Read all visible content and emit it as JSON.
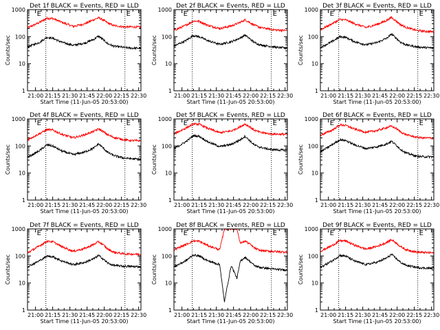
{
  "figure": {
    "y_axis_label": "Counts/sec",
    "x_axis_label": "Start Time (11-Jun-05 20:53:00)",
    "x_tick_labels": [
      "21:00",
      "21:15",
      "21:30",
      "21:45",
      "22:00",
      "22:15",
      "22:30"
    ],
    "y_tick_labels": [
      "1",
      "10",
      "100",
      "1000"
    ],
    "marker_label": "E",
    "colors": {
      "events": "#000000",
      "lld": "#ff0000",
      "background": "#ffffff",
      "axes": "#000000"
    }
  },
  "chart_data": [
    {
      "type": "line",
      "title": "Det 1f BLACK = Events, RED = LLD",
      "xlabel": "Start Time (11-Jun-05 20:53:00)",
      "ylabel": "Counts/sec",
      "x_range_minutes": [
        0,
        99
      ],
      "ylim": [
        1,
        1000
      ],
      "yscale": "log",
      "x_ticks_minutes": [
        7,
        22,
        37,
        52,
        67,
        82,
        97
      ],
      "vertical_markers_minutes": [
        16,
        85
      ],
      "corner_markers": [
        "E",
        "E"
      ],
      "series": [
        {
          "name": "LLD",
          "color": "red",
          "x": [
            0,
            10,
            17,
            22,
            30,
            40,
            50,
            58,
            62,
            66,
            70,
            75,
            84,
            90,
            99
          ],
          "y": [
            210,
            330,
            480,
            470,
            340,
            240,
            300,
            430,
            500,
            420,
            320,
            260,
            230,
            230,
            225
          ]
        },
        {
          "name": "Events",
          "color": "black",
          "x": [
            0,
            10,
            17,
            22,
            30,
            40,
            50,
            58,
            62,
            66,
            70,
            75,
            84,
            90,
            99
          ],
          "y": [
            42,
            60,
            95,
            88,
            62,
            48,
            58,
            80,
            105,
            78,
            55,
            45,
            40,
            38,
            37
          ]
        }
      ]
    },
    {
      "type": "line",
      "title": "Det 2f BLACK = Events, RED = LLD",
      "xlabel": "Start Time (11-Jun-05 20:53:00)",
      "ylabel": "Counts/sec",
      "x_range_minutes": [
        0,
        99
      ],
      "ylim": [
        1,
        1000
      ],
      "yscale": "log",
      "x_ticks_minutes": [
        7,
        22,
        37,
        52,
        67,
        82,
        97
      ],
      "vertical_markers_minutes": [
        16,
        85
      ],
      "corner_markers": [
        "E",
        "E"
      ],
      "series": [
        {
          "name": "LLD",
          "color": "red",
          "x": [
            0,
            10,
            17,
            22,
            30,
            40,
            50,
            58,
            62,
            66,
            70,
            75,
            84,
            90,
            99
          ],
          "y": [
            170,
            260,
            380,
            370,
            260,
            200,
            250,
            340,
            420,
            340,
            270,
            220,
            190,
            175,
            170
          ]
        },
        {
          "name": "Events",
          "color": "black",
          "x": [
            0,
            10,
            17,
            22,
            30,
            40,
            50,
            58,
            62,
            66,
            70,
            75,
            84,
            90,
            99
          ],
          "y": [
            45,
            70,
            110,
            100,
            70,
            52,
            65,
            90,
            115,
            85,
            62,
            50,
            44,
            40,
            38
          ]
        }
      ]
    },
    {
      "type": "line",
      "title": "Det 3f BLACK = Events, RED = LLD",
      "xlabel": "Start Time (11-Jun-05 20:53:00)",
      "ylabel": "Counts/sec",
      "x_range_minutes": [
        0,
        99
      ],
      "ylim": [
        1,
        1000
      ],
      "yscale": "log",
      "x_ticks_minutes": [
        7,
        22,
        37,
        52,
        67,
        82,
        97
      ],
      "vertical_markers_minutes": [
        16,
        85
      ],
      "corner_markers": [
        "E",
        "E"
      ],
      "series": [
        {
          "name": "LLD",
          "color": "red",
          "x": [
            0,
            10,
            17,
            22,
            30,
            40,
            50,
            58,
            62,
            66,
            70,
            75,
            84,
            90,
            99
          ],
          "y": [
            180,
            300,
            430,
            420,
            300,
            220,
            290,
            400,
            520,
            380,
            280,
            220,
            170,
            160,
            150
          ]
        },
        {
          "name": "Events",
          "color": "black",
          "x": [
            0,
            10,
            17,
            22,
            30,
            40,
            50,
            58,
            62,
            66,
            70,
            75,
            84,
            90,
            99
          ],
          "y": [
            40,
            65,
            100,
            95,
            65,
            50,
            62,
            88,
            125,
            90,
            62,
            50,
            42,
            40,
            38
          ]
        }
      ]
    },
    {
      "type": "line",
      "title": "Det 4f BLACK = Events, RED = LLD",
      "xlabel": "Start Time (11-Jun-05 20:53:00)",
      "ylabel": "Counts/sec",
      "x_range_minutes": [
        0,
        99
      ],
      "ylim": [
        1,
        1000
      ],
      "yscale": "log",
      "x_ticks_minutes": [
        7,
        22,
        37,
        52,
        67,
        82,
        97
      ],
      "vertical_markers_minutes": [
        16,
        85
      ],
      "corner_markers": [
        "E",
        "E"
      ],
      "series": [
        {
          "name": "LLD",
          "color": "red",
          "x": [
            0,
            10,
            17,
            22,
            30,
            40,
            50,
            58,
            62,
            66,
            70,
            75,
            84,
            90,
            99
          ],
          "y": [
            170,
            280,
            400,
            390,
            270,
            200,
            260,
            350,
            430,
            340,
            260,
            210,
            170,
            160,
            155
          ]
        },
        {
          "name": "Events",
          "color": "black",
          "x": [
            0,
            10,
            17,
            22,
            30,
            40,
            50,
            58,
            62,
            66,
            70,
            75,
            84,
            90,
            99
          ],
          "y": [
            38,
            65,
            110,
            100,
            65,
            48,
            60,
            85,
            120,
            85,
            58,
            45,
            36,
            34,
            32
          ]
        }
      ]
    },
    {
      "type": "line",
      "title": "Det 5f BLACK = Events, RED = LLD",
      "xlabel": "Start Time (11-Jun-05 20:53:00)",
      "ylabel": "Counts/sec",
      "x_range_minutes": [
        0,
        99
      ],
      "ylim": [
        1,
        1000
      ],
      "yscale": "log",
      "x_ticks_minutes": [
        7,
        22,
        37,
        52,
        67,
        82,
        97
      ],
      "vertical_markers_minutes": [
        16,
        85
      ],
      "corner_markers": [
        "E",
        "E"
      ],
      "series": [
        {
          "name": "LLD",
          "color": "red",
          "x": [
            0,
            10,
            17,
            22,
            30,
            40,
            50,
            58,
            62,
            66,
            70,
            75,
            84,
            90,
            99
          ],
          "y": [
            280,
            450,
            650,
            640,
            440,
            310,
            360,
            520,
            650,
            520,
            390,
            320,
            280,
            275,
            270
          ]
        },
        {
          "name": "Events",
          "color": "black",
          "x": [
            0,
            10,
            17,
            22,
            30,
            40,
            50,
            58,
            62,
            66,
            70,
            75,
            84,
            90,
            99
          ],
          "y": [
            80,
            140,
            240,
            230,
            140,
            95,
            115,
            170,
            230,
            160,
            110,
            90,
            75,
            72,
            70
          ]
        }
      ]
    },
    {
      "type": "line",
      "title": "Det 6f BLACK = Events, RED = LLD",
      "xlabel": "Start Time (11-Jun-05 20:53:00)",
      "ylabel": "Counts/sec",
      "x_range_minutes": [
        0,
        99
      ],
      "ylim": [
        1,
        1000
      ],
      "yscale": "log",
      "x_ticks_minutes": [
        7,
        22,
        37,
        52,
        67,
        82,
        97
      ],
      "vertical_markers_minutes": [
        16,
        85
      ],
      "corner_markers": [
        "E",
        "E"
      ],
      "series": [
        {
          "name": "LLD",
          "color": "red",
          "x": [
            0,
            10,
            17,
            22,
            30,
            40,
            50,
            58,
            62,
            66,
            70,
            75,
            84,
            90,
            99
          ],
          "y": [
            250,
            380,
            600,
            580,
            420,
            320,
            380,
            480,
            540,
            450,
            330,
            260,
            210,
            200,
            195
          ]
        },
        {
          "name": "Events",
          "color": "black",
          "x": [
            0,
            10,
            17,
            22,
            30,
            40,
            50,
            58,
            62,
            66,
            70,
            75,
            84,
            90,
            99
          ],
          "y": [
            60,
            110,
            170,
            160,
            110,
            80,
            95,
            120,
            150,
            110,
            75,
            55,
            42,
            40,
            40
          ]
        }
      ]
    },
    {
      "type": "line",
      "title": "Det 7f BLACK = Events, RED = LLD",
      "xlabel": "Start Time (11-Jun-05 20:53:00)",
      "ylabel": "Counts/sec",
      "x_range_minutes": [
        0,
        99
      ],
      "ylim": [
        1,
        1000
      ],
      "yscale": "log",
      "x_ticks_minutes": [
        7,
        22,
        37,
        52,
        67,
        82,
        97
      ],
      "vertical_markers_minutes": [
        16,
        85
      ],
      "corner_markers": [
        "E",
        "E"
      ],
      "series": [
        {
          "name": "LLD",
          "color": "red",
          "x": [
            0,
            10,
            17,
            22,
            30,
            40,
            50,
            58,
            62,
            66,
            70,
            75,
            84,
            90,
            99
          ],
          "y": [
            130,
            230,
            350,
            340,
            220,
            150,
            190,
            270,
            340,
            260,
            180,
            140,
            120,
            118,
            115
          ]
        },
        {
          "name": "Events",
          "color": "black",
          "x": [
            0,
            10,
            17,
            22,
            30,
            40,
            50,
            58,
            62,
            66,
            70,
            75,
            84,
            90,
            99
          ],
          "y": [
            40,
            65,
            100,
            95,
            65,
            48,
            58,
            80,
            105,
            78,
            55,
            45,
            42,
            41,
            40
          ]
        }
      ]
    },
    {
      "type": "line",
      "title": "Det 8f BLACK = Events, RED = LLD",
      "xlabel": "Start Time (11-Jun-05 20:53:00)",
      "ylabel": "Counts/sec",
      "x_range_minutes": [
        0,
        99
      ],
      "ylim": [
        1,
        1000
      ],
      "yscale": "log",
      "x_ticks_minutes": [
        7,
        22,
        37,
        52,
        67,
        82,
        97
      ],
      "vertical_markers_minutes": [
        16,
        85
      ],
      "corner_markers": [
        "E",
        "E"
      ],
      "series": [
        {
          "name": "LLD",
          "color": "red",
          "x": [
            0,
            10,
            17,
            22,
            30,
            40,
            44,
            50,
            55,
            58,
            62,
            66,
            70,
            75,
            84,
            90,
            99
          ],
          "y": [
            170,
            260,
            360,
            350,
            240,
            170,
            1000,
            1000,
            1000,
            290,
            360,
            280,
            200,
            160,
            150,
            145,
            140
          ]
        },
        {
          "name": "Events",
          "color": "black",
          "x": [
            0,
            10,
            17,
            22,
            30,
            40,
            44,
            50,
            55,
            58,
            62,
            66,
            70,
            75,
            84,
            90,
            99
          ],
          "y": [
            40,
            65,
            110,
            100,
            65,
            48,
            2,
            45,
            15,
            65,
            90,
            65,
            45,
            38,
            34,
            32,
            30
          ]
        }
      ]
    },
    {
      "type": "line",
      "title": "Det 9f BLACK = Events, RED = LLD",
      "xlabel": "Start Time (11-Jun-05 20:53:00)",
      "ylabel": "Counts/sec",
      "x_range_minutes": [
        0,
        99
      ],
      "ylim": [
        1,
        1000
      ],
      "yscale": "log",
      "x_ticks_minutes": [
        7,
        22,
        37,
        52,
        67,
        82,
        97
      ],
      "vertical_markers_minutes": [
        16,
        85
      ],
      "corner_markers": [
        "E",
        "E"
      ],
      "series": [
        {
          "name": "LLD",
          "color": "red",
          "x": [
            0,
            10,
            17,
            22,
            30,
            40,
            50,
            58,
            62,
            66,
            70,
            75,
            84,
            90,
            99
          ],
          "y": [
            150,
            240,
            370,
            360,
            250,
            180,
            230,
            320,
            400,
            310,
            220,
            170,
            140,
            135,
            130
          ]
        },
        {
          "name": "Events",
          "color": "black",
          "x": [
            0,
            10,
            17,
            22,
            30,
            40,
            50,
            58,
            62,
            66,
            70,
            75,
            84,
            90,
            99
          ],
          "y": [
            38,
            65,
            105,
            100,
            65,
            48,
            60,
            85,
            115,
            82,
            58,
            45,
            38,
            36,
            35
          ]
        }
      ]
    }
  ]
}
